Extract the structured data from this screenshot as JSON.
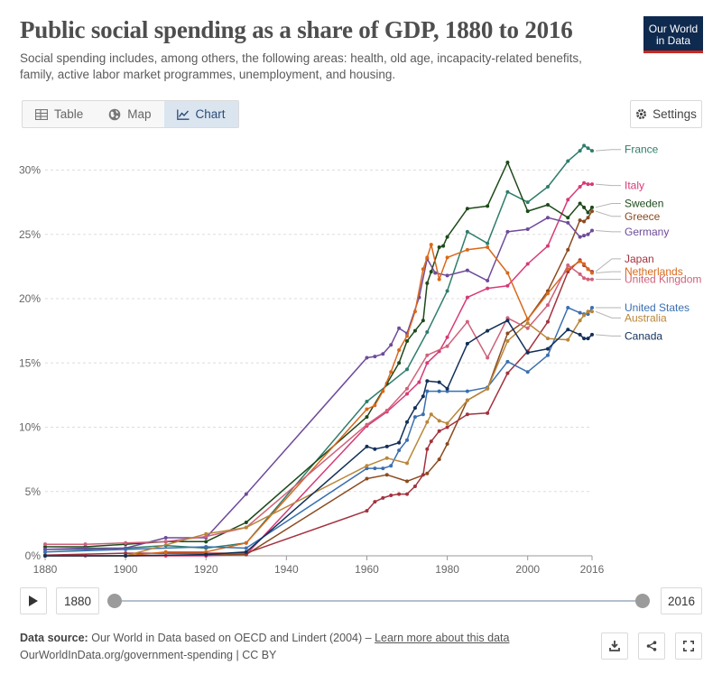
{
  "header": {
    "title": "Public social spending as a share of GDP, 1880 to 2016",
    "subtitle": "Social spending includes, among others, the following areas: health, old age, incapacity-related benefits, family, active labor market programmes, unemployment, and housing.",
    "logo_line1": "Our World",
    "logo_line2": "in Data"
  },
  "tabs": [
    {
      "label": "Table",
      "icon": "table-icon"
    },
    {
      "label": "Map",
      "icon": "globe-icon"
    },
    {
      "label": "Chart",
      "icon": "line-chart-icon",
      "active": true
    }
  ],
  "settings_label": "Settings",
  "timeline": {
    "start_label": "1880",
    "end_label": "2016"
  },
  "footer": {
    "source_prefix": "Data source:",
    "source_text": "Our World in Data based on OECD and Lindert (2004) –",
    "learn_more": "Learn more about this data",
    "line2": "OurWorldInData.org/government-spending | CC BY"
  },
  "chart_data": {
    "type": "line",
    "title": "Public social spending as a share of GDP, 1880 to 2016",
    "xlim": [
      1880,
      2016
    ],
    "ylim": [
      0,
      32
    ],
    "x_ticks": [
      1880,
      1900,
      1920,
      1940,
      1960,
      1980,
      2000,
      2016
    ],
    "x_tick_labels": [
      "1880",
      "1900",
      "1920",
      "1940",
      "1960",
      "1980",
      "2000",
      "2016"
    ],
    "y_ticks": [
      0,
      5,
      10,
      15,
      20,
      25,
      30
    ],
    "y_tick_labels": [
      "0%",
      "5%",
      "10%",
      "15%",
      "20%",
      "25%",
      "30%"
    ],
    "grid": "horizontal-dashed",
    "legend": "right",
    "series": [
      {
        "name": "France",
        "color": "#2e7d6b",
        "label_y": 31.6,
        "points": [
          [
            1880,
            0.5
          ],
          [
            1890,
            0.5
          ],
          [
            1900,
            0.6
          ],
          [
            1910,
            0.8
          ],
          [
            1920,
            0.6
          ],
          [
            1930,
            1.0
          ],
          [
            1960,
            12.0
          ],
          [
            1970,
            14.5
          ],
          [
            1975,
            17.4
          ],
          [
            1980,
            20.6
          ],
          [
            1985,
            25.2
          ],
          [
            1990,
            24.3
          ],
          [
            1995,
            28.3
          ],
          [
            2000,
            27.5
          ],
          [
            2005,
            28.7
          ],
          [
            2010,
            30.7
          ],
          [
            2013,
            31.5
          ],
          [
            2014,
            31.9
          ],
          [
            2015,
            31.7
          ],
          [
            2016,
            31.5
          ]
        ]
      },
      {
        "name": "Italy",
        "color": "#d73a76",
        "label_y": 28.8,
        "points": [
          [
            1880,
            0.0
          ],
          [
            1890,
            0.0
          ],
          [
            1900,
            0.0
          ],
          [
            1910,
            0.0
          ],
          [
            1920,
            0.0
          ],
          [
            1930,
            0.1
          ],
          [
            1960,
            10.1
          ],
          [
            1965,
            11.2
          ],
          [
            1970,
            12.6
          ],
          [
            1973,
            13.5
          ],
          [
            1975,
            15.0
          ],
          [
            1978,
            15.9
          ],
          [
            1980,
            17.0
          ],
          [
            1985,
            20.1
          ],
          [
            1990,
            20.8
          ],
          [
            1995,
            21.0
          ],
          [
            2000,
            22.7
          ],
          [
            2005,
            24.1
          ],
          [
            2010,
            27.7
          ],
          [
            2013,
            28.7
          ],
          [
            2014,
            29.0
          ],
          [
            2015,
            28.9
          ],
          [
            2016,
            28.9
          ]
        ]
      },
      {
        "name": "Sweden",
        "color": "#1d4a1a",
        "label_y": 27.4,
        "points": [
          [
            1880,
            0.7
          ],
          [
            1890,
            0.7
          ],
          [
            1900,
            0.9
          ],
          [
            1910,
            1.1
          ],
          [
            1920,
            1.1
          ],
          [
            1930,
            2.6
          ],
          [
            1960,
            10.8
          ],
          [
            1965,
            13.4
          ],
          [
            1968,
            15.0
          ],
          [
            1970,
            16.7
          ],
          [
            1972,
            17.5
          ],
          [
            1974,
            18.3
          ],
          [
            1975,
            21.2
          ],
          [
            1976,
            22.1
          ],
          [
            1978,
            24.0
          ],
          [
            1979,
            24.1
          ],
          [
            1980,
            24.8
          ],
          [
            1985,
            27.0
          ],
          [
            1990,
            27.2
          ],
          [
            1995,
            30.6
          ],
          [
            2000,
            26.8
          ],
          [
            2005,
            27.3
          ],
          [
            2010,
            26.3
          ],
          [
            2013,
            27.4
          ],
          [
            2014,
            27.1
          ],
          [
            2015,
            26.7
          ],
          [
            2016,
            27.1
          ]
        ]
      },
      {
        "name": "Greece",
        "color": "#8b4a1e",
        "label_y": 26.4,
        "points": [
          [
            1880,
            0.0
          ],
          [
            1900,
            0.0
          ],
          [
            1930,
            0.1
          ],
          [
            1960,
            6.0
          ],
          [
            1965,
            6.3
          ],
          [
            1970,
            5.8
          ],
          [
            1975,
            6.4
          ],
          [
            1978,
            7.5
          ],
          [
            1980,
            8.7
          ],
          [
            1985,
            12.1
          ],
          [
            1990,
            13.0
          ],
          [
            1995,
            17.3
          ],
          [
            2000,
            18.4
          ],
          [
            2005,
            20.6
          ],
          [
            2010,
            23.8
          ],
          [
            2013,
            26.1
          ],
          [
            2014,
            26.0
          ],
          [
            2015,
            26.3
          ],
          [
            2016,
            26.8
          ]
        ]
      },
      {
        "name": "Germany",
        "color": "#6e4a9a",
        "label_y": 25.2,
        "points": [
          [
            1880,
            0.5
          ],
          [
            1890,
            0.6
          ],
          [
            1900,
            0.6
          ],
          [
            1910,
            1.4
          ],
          [
            1920,
            1.4
          ],
          [
            1930,
            4.8
          ],
          [
            1960,
            15.4
          ],
          [
            1962,
            15.5
          ],
          [
            1964,
            15.7
          ],
          [
            1966,
            16.4
          ],
          [
            1968,
            17.7
          ],
          [
            1970,
            17.3
          ],
          [
            1973,
            20.1
          ],
          [
            1975,
            23.1
          ],
          [
            1977,
            22.0
          ],
          [
            1980,
            21.8
          ],
          [
            1985,
            22.2
          ],
          [
            1990,
            21.4
          ],
          [
            1995,
            25.2
          ],
          [
            2000,
            25.4
          ],
          [
            2005,
            26.3
          ],
          [
            2010,
            25.9
          ],
          [
            2013,
            24.8
          ],
          [
            2014,
            24.9
          ],
          [
            2015,
            25.0
          ],
          [
            2016,
            25.3
          ]
        ]
      },
      {
        "name": "Japan",
        "color": "#a3323e",
        "label_y": 23.1,
        "points": [
          [
            1880,
            0.05
          ],
          [
            1900,
            0.2
          ],
          [
            1920,
            0.2
          ],
          [
            1930,
            0.2
          ],
          [
            1960,
            3.5
          ],
          [
            1962,
            4.2
          ],
          [
            1964,
            4.5
          ],
          [
            1966,
            4.7
          ],
          [
            1968,
            4.8
          ],
          [
            1970,
            4.8
          ],
          [
            1972,
            5.4
          ],
          [
            1974,
            6.3
          ],
          [
            1975,
            8.3
          ],
          [
            1976,
            8.9
          ],
          [
            1978,
            9.7
          ],
          [
            1980,
            10.0
          ],
          [
            1985,
            11.0
          ],
          [
            1990,
            11.1
          ],
          [
            1995,
            14.2
          ],
          [
            2000,
            15.9
          ],
          [
            2005,
            18.2
          ],
          [
            2010,
            22.1
          ],
          [
            2013,
            23.0
          ],
          [
            2014,
            22.6
          ],
          [
            2015,
            22.3
          ],
          [
            2016,
            22.1
          ]
        ]
      },
      {
        "name": "Netherlands",
        "color": "#d9681c",
        "label_y": 22.1,
        "points": [
          [
            1880,
            0.0
          ],
          [
            1900,
            0.0
          ],
          [
            1910,
            0.3
          ],
          [
            1920,
            0.3
          ],
          [
            1930,
            1.0
          ],
          [
            1960,
            11.4
          ],
          [
            1962,
            11.7
          ],
          [
            1964,
            12.8
          ],
          [
            1966,
            14.3
          ],
          [
            1968,
            16.0
          ],
          [
            1970,
            17.1
          ],
          [
            1972,
            19.0
          ],
          [
            1974,
            22.3
          ],
          [
            1975,
            23.2
          ],
          [
            1976,
            24.2
          ],
          [
            1978,
            21.5
          ],
          [
            1980,
            23.2
          ],
          [
            1985,
            23.8
          ],
          [
            1990,
            24.0
          ],
          [
            1995,
            22.0
          ],
          [
            2000,
            18.4
          ],
          [
            2005,
            20.4
          ],
          [
            2010,
            22.3
          ],
          [
            2013,
            22.9
          ],
          [
            2014,
            22.7
          ],
          [
            2015,
            22.3
          ],
          [
            2016,
            22.0
          ]
        ]
      },
      {
        "name": "United Kingdom",
        "color": "#d0617a",
        "label_y": 21.5,
        "points": [
          [
            1880,
            0.9
          ],
          [
            1890,
            0.9
          ],
          [
            1900,
            1.0
          ],
          [
            1910,
            1.1
          ],
          [
            1920,
            1.5
          ],
          [
            1930,
            2.2
          ],
          [
            1960,
            10.2
          ],
          [
            1965,
            11.3
          ],
          [
            1970,
            13.0
          ],
          [
            1975,
            15.6
          ],
          [
            1980,
            16.3
          ],
          [
            1985,
            18.2
          ],
          [
            1990,
            15.4
          ],
          [
            1995,
            18.5
          ],
          [
            2000,
            17.7
          ],
          [
            2005,
            19.5
          ],
          [
            2010,
            22.6
          ],
          [
            2013,
            21.9
          ],
          [
            2014,
            21.6
          ],
          [
            2015,
            21.5
          ],
          [
            2016,
            21.5
          ]
        ]
      },
      {
        "name": "United States",
        "color": "#3a6fb0",
        "label_y": 19.3,
        "points": [
          [
            1880,
            0.3
          ],
          [
            1900,
            0.5
          ],
          [
            1920,
            0.7
          ],
          [
            1930,
            0.6
          ],
          [
            1960,
            6.8
          ],
          [
            1962,
            6.8
          ],
          [
            1964,
            6.8
          ],
          [
            1966,
            7.0
          ],
          [
            1968,
            8.2
          ],
          [
            1970,
            9.0
          ],
          [
            1972,
            10.8
          ],
          [
            1974,
            11.0
          ],
          [
            1975,
            12.8
          ],
          [
            1978,
            12.8
          ],
          [
            1980,
            12.8
          ],
          [
            1985,
            12.8
          ],
          [
            1990,
            13.1
          ],
          [
            1995,
            15.1
          ],
          [
            2000,
            14.3
          ],
          [
            2005,
            15.6
          ],
          [
            2010,
            19.3
          ],
          [
            2013,
            18.9
          ],
          [
            2014,
            18.8
          ],
          [
            2015,
            18.8
          ],
          [
            2016,
            19.3
          ]
        ]
      },
      {
        "name": "Australia",
        "color": "#b8863a",
        "label_y": 18.5,
        "points": [
          [
            1880,
            0.0
          ],
          [
            1900,
            0.0
          ],
          [
            1920,
            1.7
          ],
          [
            1930,
            2.2
          ],
          [
            1960,
            7.0
          ],
          [
            1965,
            7.6
          ],
          [
            1970,
            7.2
          ],
          [
            1975,
            10.4
          ],
          [
            1976,
            11.0
          ],
          [
            1978,
            10.5
          ],
          [
            1980,
            10.3
          ],
          [
            1985,
            12.1
          ],
          [
            1990,
            13.0
          ],
          [
            1995,
            16.7
          ],
          [
            2000,
            18.1
          ],
          [
            2005,
            16.9
          ],
          [
            2010,
            16.8
          ],
          [
            2013,
            18.3
          ],
          [
            2014,
            18.7
          ],
          [
            2015,
            19.0
          ],
          [
            2016,
            19.0
          ]
        ]
      },
      {
        "name": "Canada",
        "color": "#122f59",
        "label_y": 17.1,
        "points": [
          [
            1880,
            0.0
          ],
          [
            1900,
            0.0
          ],
          [
            1920,
            0.1
          ],
          [
            1930,
            0.3
          ],
          [
            1960,
            8.5
          ],
          [
            1962,
            8.3
          ],
          [
            1965,
            8.5
          ],
          [
            1968,
            8.8
          ],
          [
            1970,
            10.4
          ],
          [
            1972,
            11.5
          ],
          [
            1974,
            12.4
          ],
          [
            1975,
            13.6
          ],
          [
            1978,
            13.5
          ],
          [
            1980,
            13.0
          ],
          [
            1985,
            16.5
          ],
          [
            1990,
            17.5
          ],
          [
            1995,
            18.3
          ],
          [
            2000,
            15.8
          ],
          [
            2005,
            16.1
          ],
          [
            2010,
            17.6
          ],
          [
            2013,
            17.2
          ],
          [
            2014,
            16.9
          ],
          [
            2015,
            16.9
          ],
          [
            2016,
            17.2
          ]
        ]
      }
    ]
  }
}
